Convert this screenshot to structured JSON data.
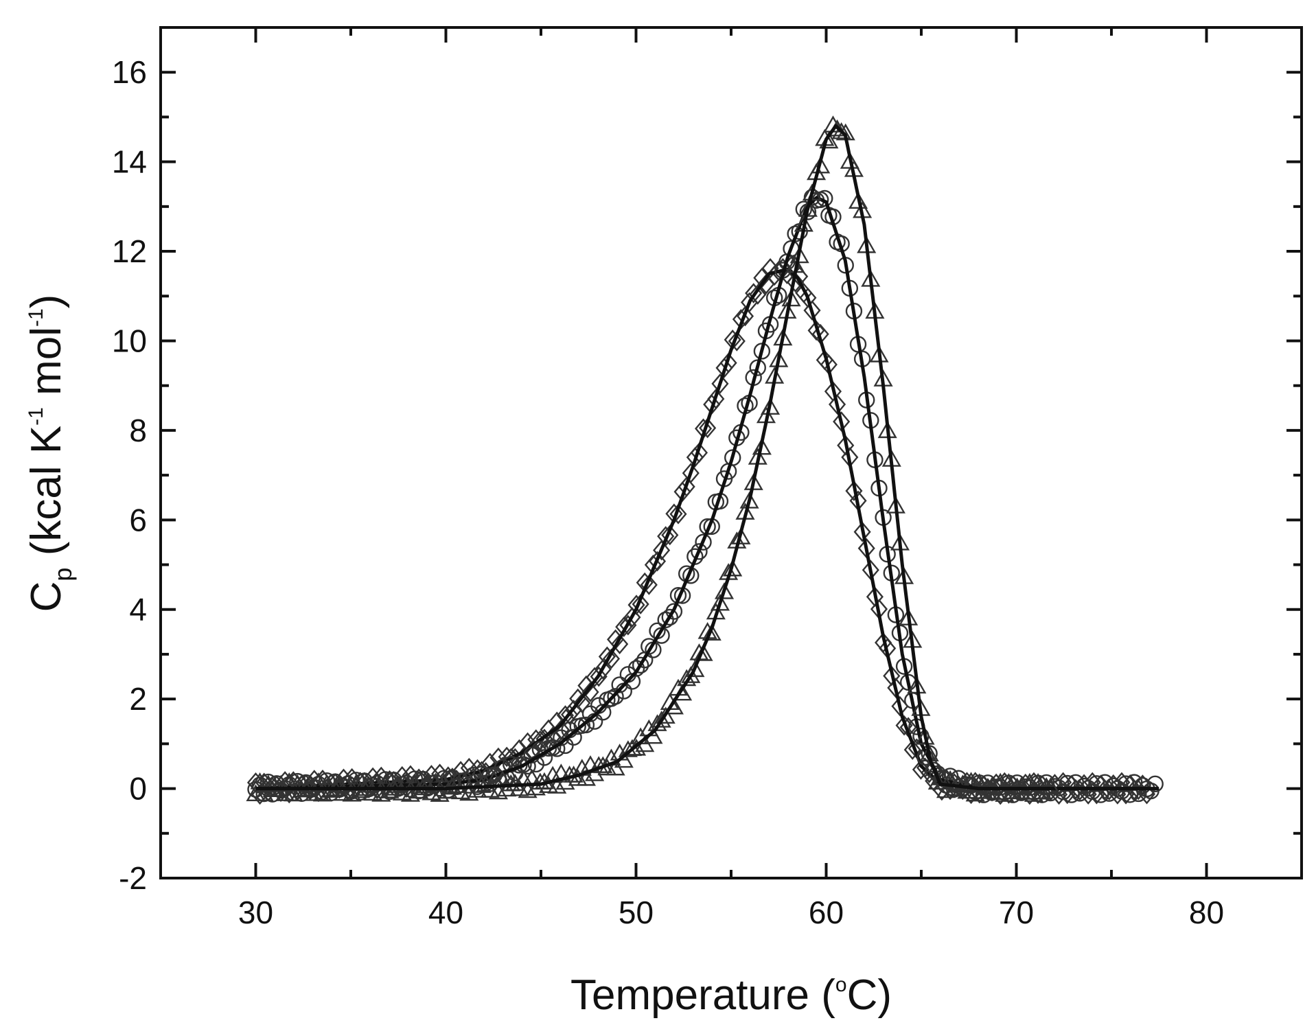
{
  "chart_data": {
    "type": "scatter",
    "title": "",
    "xlabel": {
      "main": "Temperature (",
      "sup": "o",
      "tail": "C)"
    },
    "ylabel": {
      "c": "C",
      "sub": "p",
      "part1": " (kcal K",
      "sup1": "-1",
      "part2": " mol",
      "sup2": "-1",
      "part3": ")"
    },
    "xlim": [
      25,
      85
    ],
    "ylim": [
      -2,
      17
    ],
    "x_ticks": [
      30,
      40,
      50,
      60,
      70,
      80
    ],
    "y_ticks": [
      -2,
      0,
      2,
      4,
      6,
      8,
      10,
      12,
      14,
      16
    ],
    "x_tick_labels": [
      "30",
      "40",
      "50",
      "60",
      "70",
      "80"
    ],
    "y_tick_labels": [
      "-2",
      "0",
      "2",
      "4",
      "6",
      "8",
      "10",
      "12",
      "14",
      "16"
    ],
    "grid": false,
    "legend": "none",
    "colors": {
      "line": "#111111",
      "marker": "#333333",
      "axes": "#111111"
    },
    "series": [
      {
        "marker": "diamond",
        "x": [
          30,
          40,
          42,
          44,
          46,
          48,
          50,
          51,
          52,
          53,
          54,
          55,
          56,
          57,
          58,
          58.5,
          59,
          60,
          61,
          62,
          63,
          64,
          65,
          66,
          68,
          72,
          77
        ],
        "y": [
          0,
          0.2,
          0.4,
          0.8,
          1.4,
          2.5,
          4.0,
          5.0,
          6.0,
          7.2,
          8.5,
          9.8,
          10.9,
          11.5,
          11.6,
          11.4,
          11.0,
          9.6,
          7.8,
          5.6,
          3.4,
          1.6,
          0.5,
          0.1,
          0,
          0,
          0
        ]
      },
      {
        "marker": "circle",
        "x": [
          30,
          40,
          42,
          44,
          46,
          48,
          50,
          52,
          54,
          55,
          56,
          57,
          58,
          59,
          59.5,
          60,
          61,
          62,
          63,
          64,
          65,
          66,
          68,
          72,
          77.5
        ],
        "y": [
          0,
          0.1,
          0.2,
          0.5,
          1.0,
          1.7,
          2.6,
          4.0,
          6.0,
          7.3,
          8.8,
          10.4,
          11.9,
          13.0,
          13.2,
          13.1,
          11.8,
          9.2,
          6.0,
          3.0,
          1.0,
          0.2,
          0,
          0,
          0
        ]
      },
      {
        "marker": "triangle",
        "x": [
          30,
          40,
          45,
          47,
          49,
          51,
          53,
          54,
          55,
          56,
          57,
          58,
          59,
          60,
          60.5,
          61,
          62,
          63,
          64,
          65,
          65.5,
          66,
          68,
          72
        ],
        "y": [
          0,
          0,
          0.1,
          0.3,
          0.6,
          1.3,
          2.6,
          3.6,
          4.9,
          6.5,
          8.5,
          10.7,
          12.9,
          14.5,
          14.8,
          14.6,
          12.6,
          9.0,
          5.0,
          1.6,
          0.6,
          0.1,
          0,
          0
        ]
      }
    ]
  }
}
